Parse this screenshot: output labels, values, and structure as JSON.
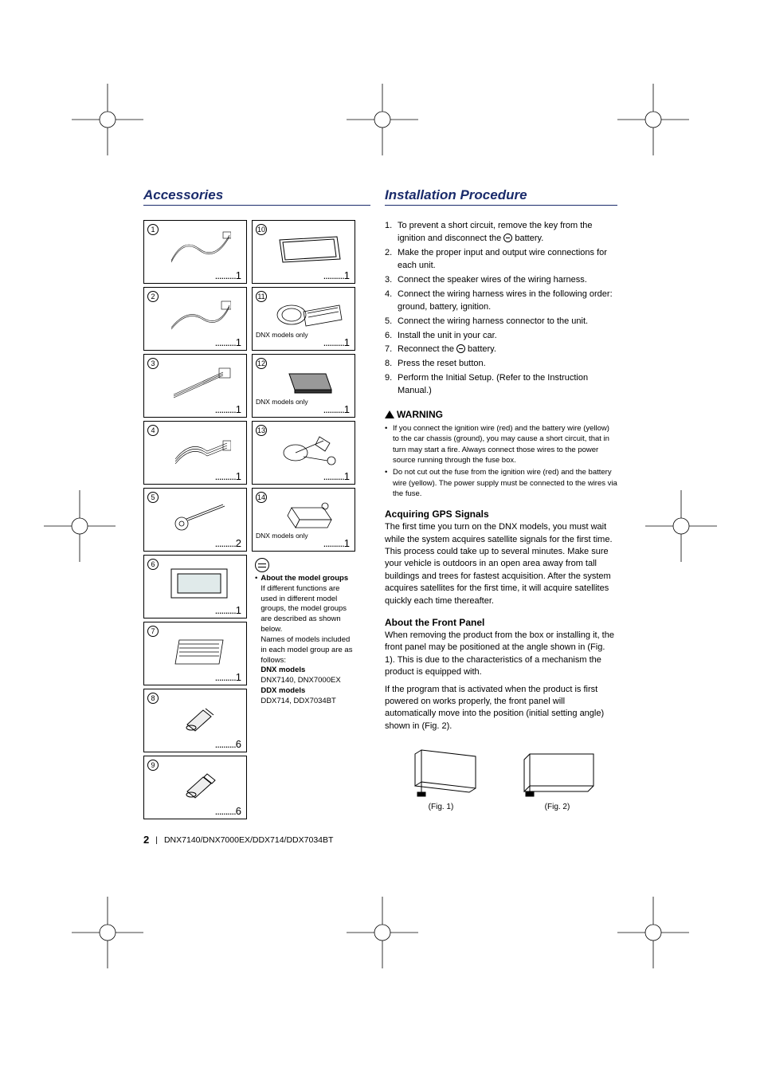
{
  "left_title": "Accessories",
  "right_title": "Installation Procedure",
  "accessories": {
    "col1": [
      {
        "n": "1",
        "qty": "1"
      },
      {
        "n": "2",
        "qty": "1"
      },
      {
        "n": "3",
        "qty": "1"
      },
      {
        "n": "4",
        "qty": "1"
      },
      {
        "n": "5",
        "qty": "2"
      },
      {
        "n": "6",
        "qty": "1"
      },
      {
        "n": "7",
        "qty": "1"
      },
      {
        "n": "8",
        "qty": "6"
      },
      {
        "n": "9",
        "qty": "6"
      }
    ],
    "col2": [
      {
        "n": "10",
        "qty": "1"
      },
      {
        "n": "11",
        "qty": "1",
        "note": "DNX models only"
      },
      {
        "n": "12",
        "qty": "1",
        "note": "DNX models only"
      },
      {
        "n": "13",
        "qty": "1"
      },
      {
        "n": "14",
        "qty": "1",
        "note": "DNX models only"
      }
    ]
  },
  "info": {
    "head": "About the model groups",
    "p1": "If different functions are used in different model groups, the model groups are described as shown below.",
    "p2": "Names of models included in each model group are as follows:",
    "dnx_h": "DNX models",
    "dnx_m": "DNX7140, DNX7000EX",
    "ddx_h": "DDX models",
    "ddx_m": "DDX714, DDX7034BT"
  },
  "procedure": [
    {
      "n": "1.",
      "t": "To prevent a short circuit, remove the key from the ignition and disconnect the ⊖ battery.",
      "minus": true
    },
    {
      "n": "2.",
      "t": "Make the proper input and output wire connections for each unit."
    },
    {
      "n": "3.",
      "t": "Connect the speaker wires of the wiring harness."
    },
    {
      "n": "4.",
      "t": "Connect the wiring harness wires in the following order: ground, battery, ignition."
    },
    {
      "n": "5.",
      "t": "Connect the wiring harness connector to the unit."
    },
    {
      "n": "6.",
      "t": "Install the unit in your car."
    },
    {
      "n": "7.",
      "t": "Reconnect the ⊖ battery.",
      "minus": true
    },
    {
      "n": "8.",
      "t": "Press the reset button."
    },
    {
      "n": "9.",
      "t": "Perform the Initial Setup. (Refer to the Instruction Manual.)"
    }
  ],
  "warning_head": "WARNING",
  "warnings": [
    "If you connect the ignition wire (red) and the battery wire (yellow) to the car chassis (ground), you may cause a short circuit, that in turn may start a fire. Always connect those wires to the power source running through the fuse box.",
    "Do not cut out the fuse from the ignition wire (red) and the battery wire (yellow). The power supply must be connected to the wires via the fuse."
  ],
  "gps_head": "Acquiring GPS Signals",
  "gps_body": "The first time you turn on the DNX models, you must wait while the system acquires satellite signals for the first time. This process could take up to several minutes. Make sure your vehicle is outdoors in an open area away from tall buildings and trees for fastest acquisition. After the system acquires satellites for the first time, it will acquire satellites quickly each time thereafter.",
  "front_head": "About the Front Panel",
  "front_p1": "When removing the product from the box or installing it, the front panel may be positioned at the angle shown in (Fig. 1). This is due to the characteristics of a mechanism the product is equipped with.",
  "front_p2": "If the program that is activated when the product is first powered on works properly, the front panel will automatically move into the position (initial setting angle) shown in (Fig. 2).",
  "fig1": "(Fig. 1)",
  "fig2": "(Fig. 2)",
  "page_num": "2",
  "page_models": "DNX7140/DNX7000EX/DDX714/DDX7034BT"
}
